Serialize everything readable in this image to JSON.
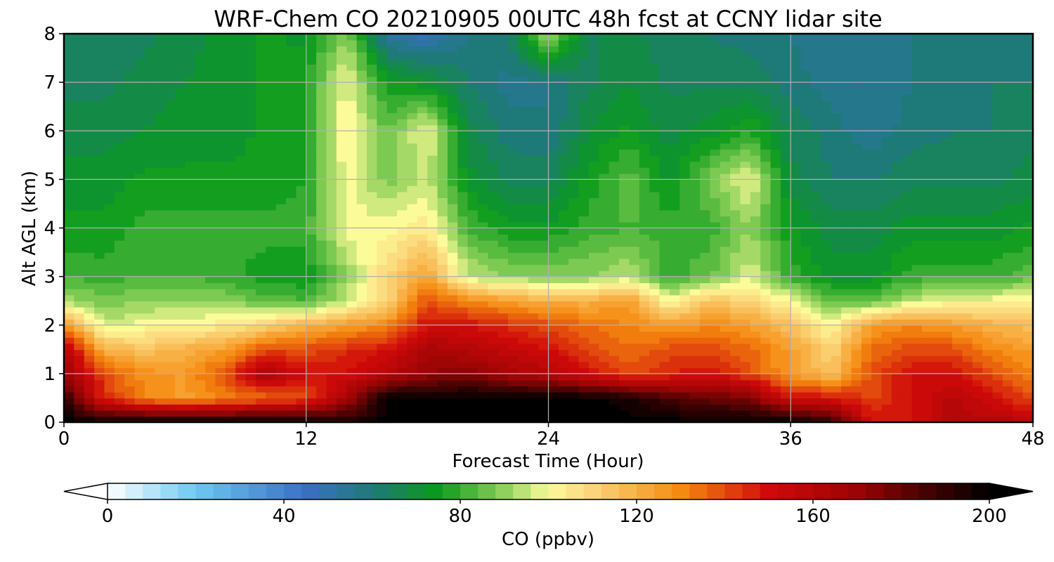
{
  "chart_data": {
    "type": "heatmap",
    "title": "WRF-Chem CO  20210905 00UTC 48h fcst at CCNY lidar site",
    "xlabel": "Forecast Time (Hour)",
    "ylabel": "Alt AGL (km)",
    "xlim": [
      0,
      48
    ],
    "ylim": [
      0,
      8
    ],
    "x_ticks": [
      0,
      12,
      24,
      36,
      48
    ],
    "y_ticks": [
      0,
      1,
      2,
      3,
      4,
      5,
      6,
      7,
      8
    ],
    "grid": true,
    "colorbar": {
      "label": "CO  (ppbv)",
      "range": [
        0,
        200
      ],
      "ticks": [
        0,
        40,
        80,
        120,
        160,
        200
      ],
      "extend": "both",
      "orientation": "horizontal",
      "colors": [
        {
          "value": 0,
          "color": "#ffffff"
        },
        {
          "value": 20,
          "color": "#6cc8f2"
        },
        {
          "value": 45,
          "color": "#3a6fc4"
        },
        {
          "value": 60,
          "color": "#1e7a78"
        },
        {
          "value": 75,
          "color": "#0a9a1c"
        },
        {
          "value": 90,
          "color": "#8fd15a"
        },
        {
          "value": 100,
          "color": "#fcfb9a"
        },
        {
          "value": 110,
          "color": "#fbd57a"
        },
        {
          "value": 130,
          "color": "#f58a10"
        },
        {
          "value": 150,
          "color": "#d00a0a"
        },
        {
          "value": 170,
          "color": "#9a0404"
        },
        {
          "value": 185,
          "color": "#4a0202"
        },
        {
          "value": 200,
          "color": "#000000"
        }
      ]
    },
    "hours": [
      0,
      2,
      4,
      6,
      8,
      10,
      12,
      14,
      16,
      18,
      20,
      22,
      24,
      26,
      28,
      30,
      32,
      34,
      36,
      38,
      40,
      42,
      44,
      46,
      48
    ],
    "altitudes_km": [
      0,
      0.5,
      1,
      1.5,
      2,
      2.5,
      3,
      4,
      5,
      6,
      7,
      8
    ],
    "values_ppbv": [
      [
        200,
        200,
        200,
        200,
        200,
        200,
        200,
        195,
        200,
        200,
        200,
        200,
        200,
        200,
        200,
        200,
        200,
        200,
        200,
        190,
        150,
        150,
        160,
        160,
        160
      ],
      [
        190,
        145,
        130,
        125,
        130,
        135,
        140,
        165,
        200,
        200,
        200,
        200,
        200,
        200,
        195,
        185,
        180,
        175,
        150,
        150,
        140,
        150,
        160,
        150,
        140
      ],
      [
        170,
        140,
        128,
        125,
        140,
        165,
        150,
        150,
        160,
        170,
        175,
        165,
        160,
        150,
        140,
        145,
        150,
        140,
        125,
        115,
        140,
        150,
        150,
        140,
        130
      ],
      [
        160,
        120,
        115,
        120,
        125,
        140,
        140,
        145,
        150,
        165,
        160,
        155,
        150,
        140,
        135,
        140,
        140,
        135,
        125,
        110,
        135,
        140,
        140,
        130,
        125
      ],
      [
        130,
        95,
        100,
        102,
        104,
        110,
        120,
        125,
        130,
        150,
        150,
        145,
        140,
        135,
        130,
        125,
        130,
        125,
        115,
        100,
        125,
        130,
        125,
        120,
        115
      ],
      [
        92,
        88,
        90,
        90,
        90,
        85,
        82,
        95,
        110,
        140,
        130,
        125,
        120,
        120,
        125,
        100,
        115,
        110,
        100,
        85,
        85,
        95,
        100,
        100,
        105
      ],
      [
        82,
        80,
        82,
        82,
        80,
        75,
        75,
        90,
        110,
        125,
        95,
        90,
        90,
        90,
        95,
        80,
        85,
        98,
        80,
        72,
        72,
        80,
        80,
        80,
        85
      ],
      [
        75,
        75,
        80,
        80,
        80,
        80,
        80,
        100,
        100,
        105,
        82,
        75,
        75,
        80,
        82,
        80,
        80,
        90,
        75,
        68,
        68,
        72,
        72,
        72,
        75
      ],
      [
        72,
        72,
        75,
        75,
        75,
        75,
        78,
        100,
        88,
        95,
        72,
        65,
        65,
        75,
        85,
        72,
        88,
        100,
        68,
        62,
        62,
        65,
        65,
        65,
        68
      ],
      [
        68,
        68,
        70,
        72,
        72,
        75,
        78,
        102,
        85,
        100,
        68,
        60,
        58,
        70,
        75,
        68,
        72,
        78,
        65,
        60,
        55,
        60,
        62,
        62,
        65
      ],
      [
        65,
        65,
        68,
        70,
        72,
        75,
        78,
        100,
        75,
        72,
        62,
        56,
        58,
        65,
        70,
        65,
        65,
        65,
        60,
        56,
        55,
        58,
        60,
        62,
        62
      ],
      [
        62,
        62,
        65,
        68,
        72,
        75,
        72,
        90,
        52,
        48,
        58,
        62,
        92,
        65,
        68,
        62,
        62,
        60,
        58,
        55,
        55,
        58,
        60,
        60,
        60
      ]
    ]
  }
}
